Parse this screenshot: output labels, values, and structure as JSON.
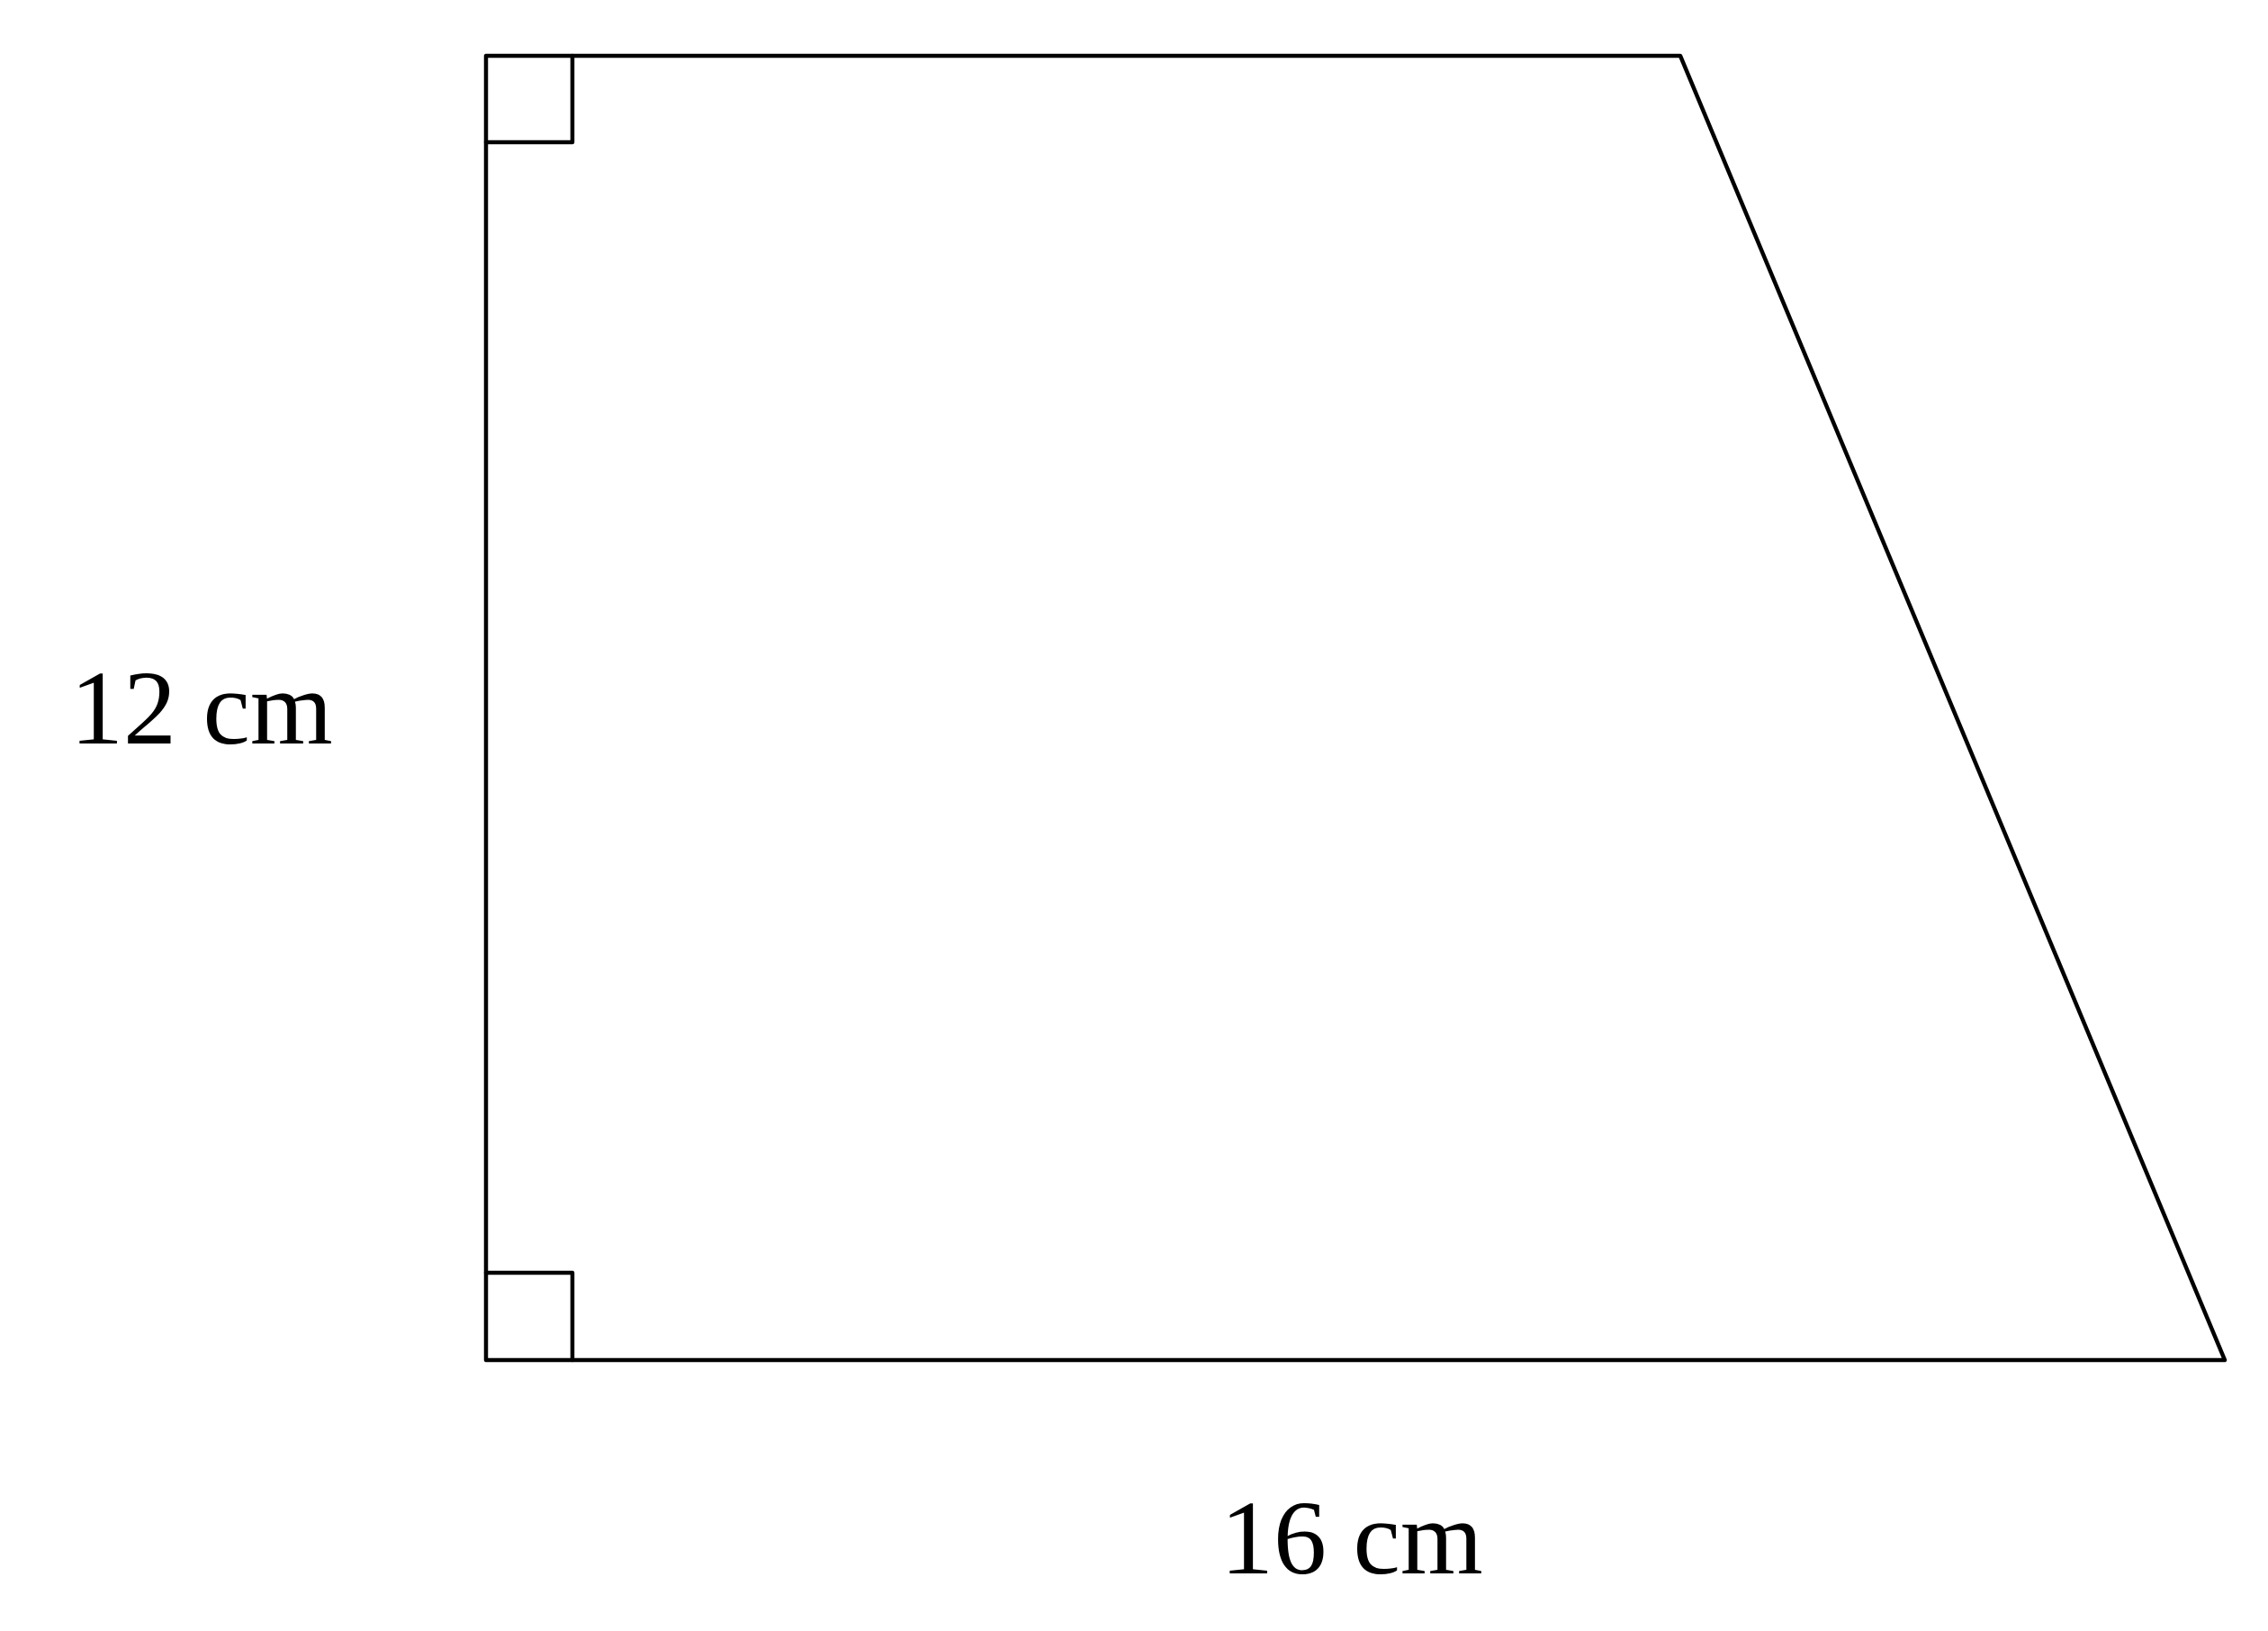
{
  "diagram": {
    "height_label": "12 cm",
    "base_label": "16 cm"
  },
  "colors": {
    "stroke": "#000000",
    "background": "#ffffff"
  }
}
